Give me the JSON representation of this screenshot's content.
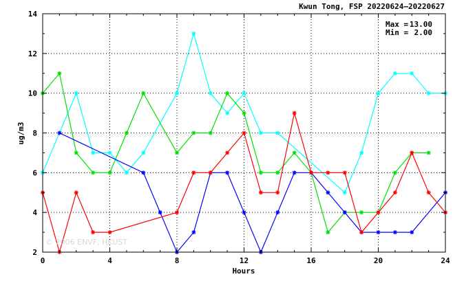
{
  "chart_data": {
    "type": "line",
    "title": "Kwun Tong, FSP 20220624—20220627",
    "xlabel": "Hours",
    "ylabel": "ug/m3",
    "xlim": [
      0,
      24
    ],
    "ylim": [
      2,
      14
    ],
    "xticks": [
      0,
      4,
      8,
      12,
      16,
      20,
      24
    ],
    "yticks": [
      2,
      4,
      6,
      8,
      10,
      12,
      14
    ],
    "grid": true,
    "stats": {
      "max_label": "Max =",
      "max_value": "13.00",
      "min_label": "Min =",
      "min_value": "2.00"
    },
    "watermark": "© 2006 ENVF, HKUST",
    "series": [
      {
        "color": "#00ffff",
        "points": [
          [
            0,
            6
          ],
          [
            2,
            10
          ],
          [
            3,
            7
          ],
          [
            4,
            7
          ],
          [
            5,
            6
          ],
          [
            6,
            7
          ],
          [
            8,
            10
          ],
          [
            9,
            13
          ],
          [
            10,
            10
          ],
          [
            11,
            9
          ],
          [
            12,
            10
          ],
          [
            13,
            8
          ],
          [
            14,
            8
          ],
          [
            18,
            5
          ],
          [
            19,
            7
          ],
          [
            20,
            10
          ],
          [
            21,
            11
          ],
          [
            22,
            11
          ],
          [
            23,
            10
          ],
          [
            24,
            10
          ]
        ]
      },
      {
        "color": "#00e000",
        "points": [
          [
            0,
            10
          ],
          [
            1,
            11
          ],
          [
            2,
            7
          ],
          [
            3,
            6
          ],
          [
            4,
            6
          ],
          [
            5,
            8
          ],
          [
            6,
            10
          ],
          [
            8,
            7
          ],
          [
            9,
            8
          ],
          [
            10,
            8
          ],
          [
            11,
            10
          ],
          [
            12,
            9
          ],
          [
            13,
            6
          ],
          [
            14,
            6
          ],
          [
            15,
            7
          ],
          [
            16,
            6
          ],
          [
            17,
            3
          ],
          [
            18,
            4
          ],
          [
            19,
            4
          ],
          [
            20,
            4
          ],
          [
            21,
            6
          ],
          [
            22,
            7
          ],
          [
            23,
            7
          ]
        ]
      },
      {
        "color": "#0000ff",
        "points": [
          [
            1,
            8
          ],
          [
            6,
            6
          ],
          [
            7,
            4
          ],
          [
            8,
            2
          ],
          [
            9,
            3
          ],
          [
            10,
            6
          ],
          [
            11,
            6
          ],
          [
            12,
            4
          ],
          [
            13,
            2
          ],
          [
            14,
            4
          ],
          [
            15,
            6
          ],
          [
            16,
            6
          ],
          [
            17,
            5
          ],
          [
            18,
            4
          ],
          [
            19,
            3
          ],
          [
            20,
            3
          ],
          [
            21,
            3
          ],
          [
            22,
            3
          ],
          [
            24,
            5
          ]
        ]
      },
      {
        "color": "#ff0000",
        "points": [
          [
            0,
            5
          ],
          [
            1,
            2
          ],
          [
            2,
            5
          ],
          [
            3,
            3
          ],
          [
            4,
            3
          ],
          [
            8,
            4
          ],
          [
            9,
            6
          ],
          [
            10,
            6
          ],
          [
            11,
            7
          ],
          [
            12,
            8
          ],
          [
            13,
            5
          ],
          [
            14,
            5
          ],
          [
            15,
            9
          ],
          [
            16,
            6
          ],
          [
            17,
            6
          ],
          [
            18,
            6
          ],
          [
            19,
            3
          ],
          [
            20,
            4
          ],
          [
            21,
            5
          ],
          [
            22,
            7
          ],
          [
            23,
            5
          ],
          [
            24,
            4
          ]
        ]
      }
    ]
  }
}
